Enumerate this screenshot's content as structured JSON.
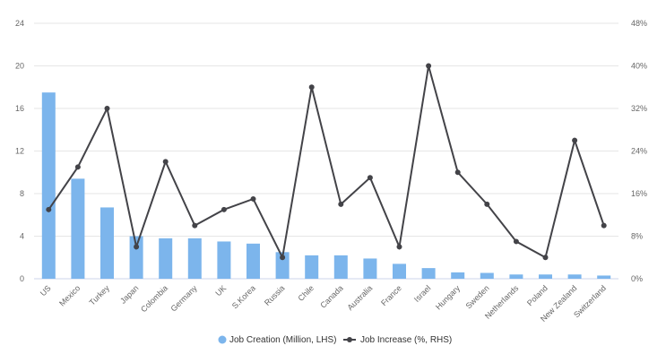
{
  "chart_data": {
    "type": "bar",
    "categories": [
      "US",
      "Mexico",
      "Turkey",
      "Japan",
      "Colombia",
      "Germany",
      "UK",
      "S.Korea",
      "Russia",
      "Chile",
      "Canada",
      "Australia",
      "France",
      "Israel",
      "Hungary",
      "Sweden",
      "Netherlands",
      "Poland",
      "New Zealand",
      "Switzerland"
    ],
    "series": [
      {
        "name": "Job Creation (Million, LHS)",
        "type": "bar",
        "axis": "left",
        "color": "#7cb5ec",
        "values": [
          17.5,
          9.4,
          6.7,
          4.0,
          3.8,
          3.8,
          3.5,
          3.3,
          2.5,
          2.2,
          2.2,
          1.9,
          1.4,
          1.0,
          0.6,
          0.55,
          0.4,
          0.4,
          0.4,
          0.3
        ]
      },
      {
        "name": "Job Increase (%, RHS)",
        "type": "line",
        "axis": "right",
        "color": "#434348",
        "values": [
          13,
          21,
          32,
          6,
          22,
          10,
          13,
          15,
          4,
          36,
          14,
          19,
          6,
          40,
          20,
          14,
          7,
          4,
          26,
          10
        ]
      }
    ],
    "y_left": {
      "min": 0,
      "max": 24,
      "ticks": [
        "0",
        "4",
        "8",
        "12",
        "16",
        "20",
        "24"
      ]
    },
    "y_right": {
      "min": 0,
      "max": 48,
      "ticks": [
        "0%",
        "8%",
        "16%",
        "24%",
        "32%",
        "40%",
        "48%"
      ]
    },
    "grid": true,
    "legend": "bottom-center"
  }
}
